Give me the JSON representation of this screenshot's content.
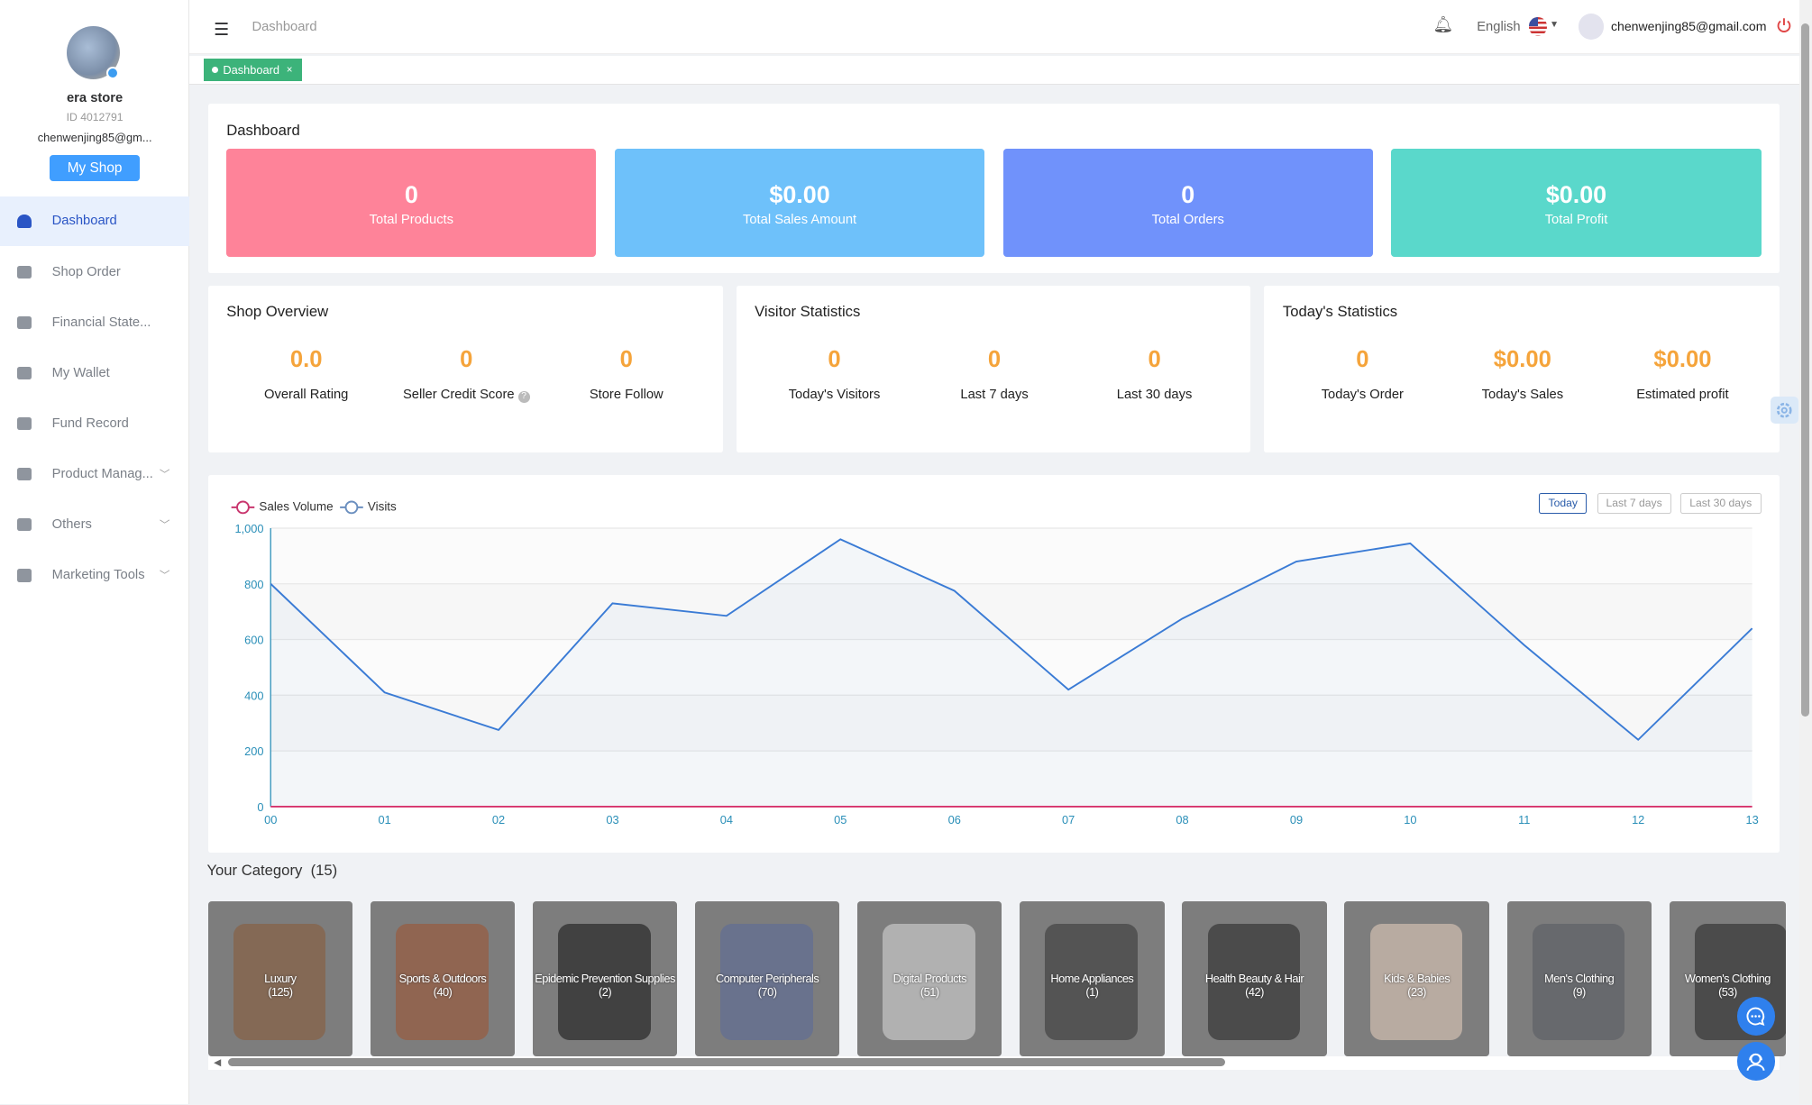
{
  "sidebar": {
    "store_name": "era store",
    "store_id": "ID 4012791",
    "email": "chenwenjing85@gm...",
    "my_shop": "My Shop",
    "items": [
      {
        "label": "Dashboard",
        "icon": "dashboard-icon",
        "active": true
      },
      {
        "label": "Shop Order",
        "icon": "clipboard-icon"
      },
      {
        "label": "Financial State...",
        "icon": "chart-icon"
      },
      {
        "label": "My Wallet",
        "icon": "wallet-icon"
      },
      {
        "label": "Fund Record",
        "icon": "document-icon"
      },
      {
        "label": "Product Manag...",
        "icon": "briefcase-icon",
        "expandable": true
      },
      {
        "label": "Others",
        "icon": "grid-icon",
        "expandable": true
      },
      {
        "label": "Marketing Tools",
        "icon": "bar-chart-icon",
        "expandable": true
      }
    ]
  },
  "header": {
    "breadcrumb": "Dashboard",
    "language": "English",
    "email": "chenwenjing85@gmail.com"
  },
  "tabs": [
    {
      "label": "Dashboard",
      "close": "×"
    }
  ],
  "dashboard": {
    "title": "Dashboard",
    "tiles": [
      {
        "value": "0",
        "label": "Total Products",
        "color": "#fe8399"
      },
      {
        "value": "$0.00",
        "label": "Total Sales Amount",
        "color": "#6ec1fa"
      },
      {
        "value": "0",
        "label": "Total Orders",
        "color": "#7092fb"
      },
      {
        "value": "$0.00",
        "label": "Total Profit",
        "color": "#5ad8cb"
      }
    ]
  },
  "shop_overview": {
    "title": "Shop Overview",
    "stats": [
      {
        "value": "0.0",
        "label": "Overall Rating"
      },
      {
        "value": "0",
        "label": "Seller Credit Score"
      },
      {
        "value": "0",
        "label": "Store Follow"
      }
    ]
  },
  "visitor_statistics": {
    "title": "Visitor Statistics",
    "stats": [
      {
        "value": "0",
        "label": "Today's Visitors"
      },
      {
        "value": "0",
        "label": "Last 7 days"
      },
      {
        "value": "0",
        "label": "Last 30 days"
      }
    ]
  },
  "todays_statistics": {
    "title": "Today's Statistics",
    "stats": [
      {
        "value": "0",
        "label": "Today's Order"
      },
      {
        "value": "$0.00",
        "label": "Today's Sales"
      },
      {
        "value": "$0.00",
        "label": "Estimated profit"
      }
    ]
  },
  "chart_controls": {
    "ranges": [
      "Today",
      "Last 7 days",
      "Last 30 days"
    ],
    "selected": "Today"
  },
  "chart_data": {
    "type": "line",
    "x": [
      "00",
      "01",
      "02",
      "03",
      "04",
      "05",
      "06",
      "07",
      "08",
      "09",
      "10",
      "11",
      "12",
      "13"
    ],
    "series": [
      {
        "name": "Sales Volume",
        "color": "#d6336c",
        "values": [
          0,
          0,
          0,
          0,
          0,
          0,
          0,
          0,
          0,
          0,
          0,
          0,
          0,
          0
        ]
      },
      {
        "name": "Visits",
        "color": "#3a7bd5",
        "values": [
          800,
          410,
          275,
          730,
          685,
          960,
          775,
          420,
          675,
          880,
          945,
          580,
          240,
          640
        ]
      }
    ],
    "yticks": [
      "0",
      "200",
      "400",
      "600",
      "800",
      "1,000"
    ],
    "ylim": [
      0,
      1000
    ],
    "legend": "top-left",
    "grid": true
  },
  "category": {
    "title": "Your Category",
    "count": "(15)",
    "items": [
      {
        "name": "Luxury",
        "count": "(125)",
        "color": "#8a5a35"
      },
      {
        "name": "Sports & Outdoors",
        "count": "(40)",
        "color": "#a0522d"
      },
      {
        "name": "Epidemic Prevention Supplies",
        "count": "(2)",
        "color": "#111111"
      },
      {
        "name": "Computer Peripherals",
        "count": "(70)",
        "color": "#5a6a9a"
      },
      {
        "name": "Digital Products",
        "count": "(51)",
        "color": "#dddddd"
      },
      {
        "name": "Home Appliances",
        "count": "(1)",
        "color": "#333333"
      },
      {
        "name": "Health Beauty & Hair",
        "count": "(42)",
        "color": "#222222"
      },
      {
        "name": "Kids & Babies",
        "count": "(23)",
        "color": "#e9d2c0"
      },
      {
        "name": "Men's Clothing",
        "count": "(9)",
        "color": "#555a60"
      },
      {
        "name": "Women's Clothing",
        "count": "(53)",
        "color": "#222222"
      }
    ]
  }
}
